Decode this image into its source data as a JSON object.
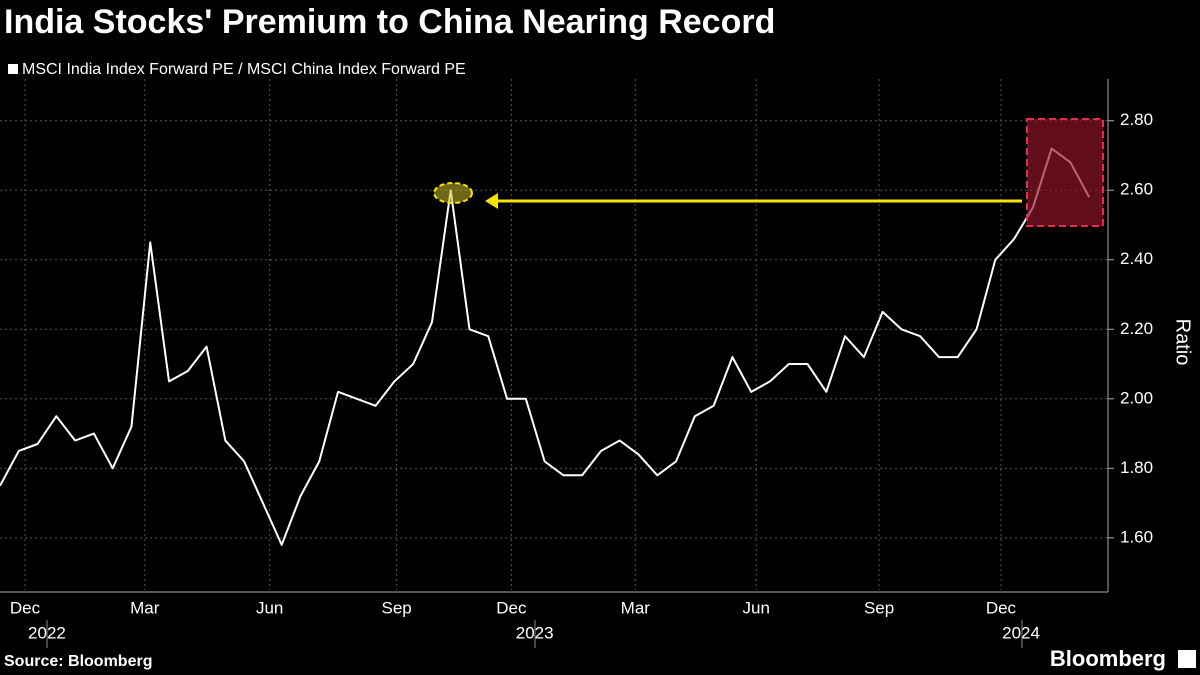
{
  "chart_data": {
    "type": "line",
    "title": "India Stocks' Premium to China Nearing Record",
    "y_label": "Ratio",
    "source": "Source: Bloomberg",
    "logo": "Bloomberg",
    "series": [
      {
        "name": "MSCI India Index Forward PE / MSCI China Index Forward PE",
        "color": "#ffffff",
        "values": [
          1.75,
          1.85,
          1.87,
          1.95,
          1.88,
          1.9,
          1.8,
          1.92,
          2.45,
          2.05,
          2.08,
          2.15,
          1.88,
          1.82,
          1.7,
          1.58,
          1.72,
          1.82,
          2.02,
          2.0,
          1.98,
          2.05,
          2.1,
          2.22,
          2.6,
          2.2,
          2.18,
          2.0,
          2.0,
          1.82,
          1.78,
          1.78,
          1.85,
          1.88,
          1.84,
          1.78,
          1.82,
          1.95,
          1.98,
          2.12,
          2.02,
          2.05,
          2.1,
          2.1,
          2.02,
          2.18,
          2.12,
          2.25,
          2.2,
          2.18,
          2.12,
          2.12,
          2.2,
          2.4,
          2.46,
          2.55,
          2.72,
          2.68,
          2.58
        ]
      }
    ],
    "xlim": [
      0,
      59
    ],
    "xticks": [
      {
        "value": 1.33,
        "label": "Dec"
      },
      {
        "value": 7.71,
        "label": "Mar"
      },
      {
        "value": 14.36,
        "label": "Jun"
      },
      {
        "value": 21.12,
        "label": "Sep"
      },
      {
        "value": 27.23,
        "label": "Dec"
      },
      {
        "value": 33.83,
        "label": "Mar"
      },
      {
        "value": 40.27,
        "label": "Jun"
      },
      {
        "value": 46.81,
        "label": "Sep"
      },
      {
        "value": 53.3,
        "label": "Dec"
      }
    ],
    "year_ticks": [
      {
        "value": 2.5,
        "label": "2022"
      },
      {
        "value": 28.47,
        "label": "2023"
      },
      {
        "value": 54.37,
        "label": "2024"
      }
    ],
    "ylim": [
      1.45,
      2.92
    ],
    "yticks": [
      {
        "value": 1.6,
        "label": "1.60"
      },
      {
        "value": 1.8,
        "label": "1.80"
      },
      {
        "value": 2.0,
        "label": "2.00"
      },
      {
        "value": 2.2,
        "label": "2.20"
      },
      {
        "value": 2.4,
        "label": "2.40"
      },
      {
        "value": 2.6,
        "label": "2.60"
      },
      {
        "value": 2.8,
        "label": "2.80"
      }
    ],
    "grid": true
  }
}
